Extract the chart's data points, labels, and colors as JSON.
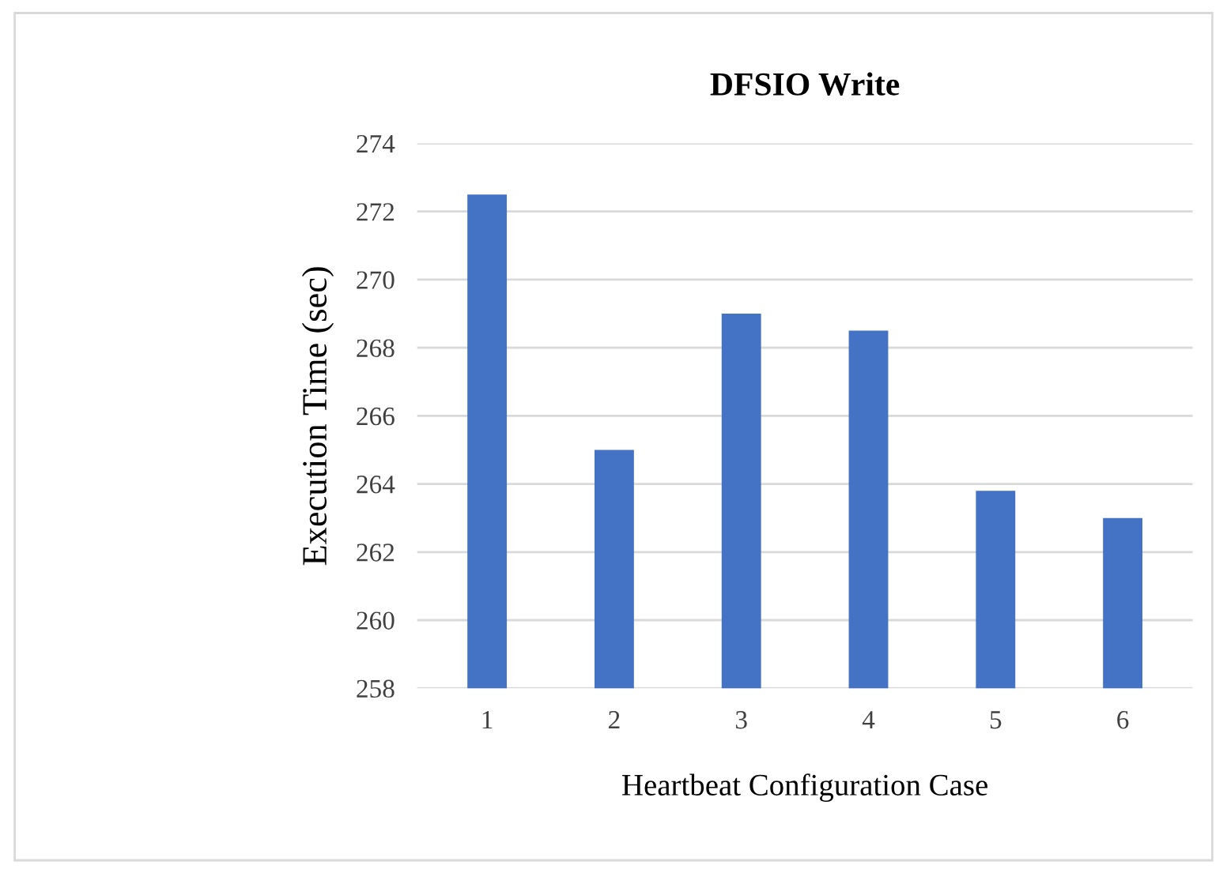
{
  "chart_data": {
    "type": "bar",
    "title": "DFSIO Write",
    "xlabel": "Heartbeat Configuration Case",
    "ylabel": "Execution Time (sec)",
    "categories": [
      "1",
      "2",
      "3",
      "4",
      "5",
      "6"
    ],
    "values": [
      272.5,
      265,
      269,
      268.5,
      263.8,
      263
    ],
    "color": "#4472c4",
    "ylim": [
      258,
      274
    ],
    "yticks": [
      258,
      260,
      262,
      264,
      266,
      268,
      270,
      272,
      274
    ],
    "grid": "y",
    "legend": false
  }
}
